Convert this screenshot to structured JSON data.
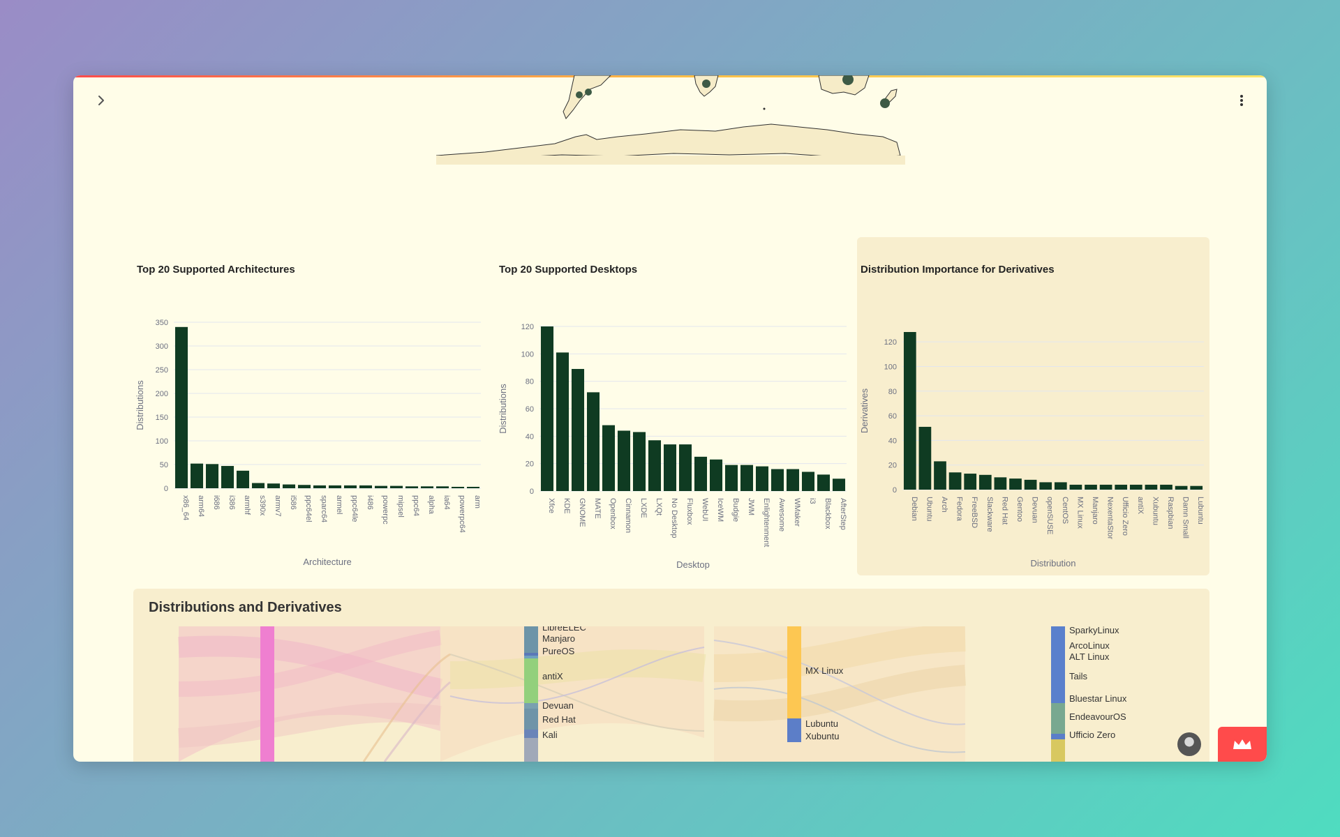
{
  "window": {
    "accent_gradient": [
      "#ff4b4b",
      "#ffbd45",
      "#ffe66b"
    ],
    "background": "#fffde8"
  },
  "header": {
    "expand_icon": "chevron-right-icon",
    "menu_icon": "more-vertical-icon"
  },
  "colors": {
    "bar": "#0f3b22",
    "panel": "#f8eece",
    "grid": "#e3e6ee",
    "axis_text": "#6b6f80"
  },
  "chart_data": [
    {
      "type": "bar",
      "title": "Top 20 Supported Architectures",
      "xlabel": "Architecture",
      "ylabel": "Distributions",
      "categories": [
        "x86_64",
        "arm64",
        "i686",
        "i386",
        "armhf",
        "s390x",
        "armv7",
        "i586",
        "ppc64el",
        "sparc64",
        "armel",
        "ppc64le",
        "i486",
        "powerpc",
        "mipsel",
        "ppc64",
        "alpha",
        "ia64",
        "powerpc64",
        "arm"
      ],
      "values": [
        340,
        52,
        51,
        47,
        37,
        11,
        10,
        8,
        7,
        6,
        6,
        6,
        6,
        5,
        5,
        4,
        4,
        4,
        3,
        3
      ],
      "ylim": [
        0,
        350
      ],
      "yticks": [
        0,
        50,
        100,
        150,
        200,
        250,
        300,
        350
      ],
      "grid": true
    },
    {
      "type": "bar",
      "title": "Top 20 Supported Desktops",
      "xlabel": "Desktop",
      "ylabel": "Distributions",
      "categories": [
        "Xfce",
        "KDE",
        "GNOME",
        "MATE",
        "Openbox",
        "Cinnamon",
        "LXDE",
        "LXQt",
        "No Desktop",
        "Fluxbox",
        "WebUI",
        "IceWM",
        "Budgie",
        "JWM",
        "Enlightenment",
        "Awesome",
        "WMaker",
        "i3",
        "Blackbox",
        "AfterStep"
      ],
      "values": [
        120,
        101,
        89,
        72,
        48,
        44,
        43,
        37,
        34,
        34,
        25,
        23,
        19,
        19,
        18,
        16,
        16,
        14,
        12,
        9
      ],
      "ylim": [
        0,
        120
      ],
      "yticks": [
        0,
        20,
        40,
        60,
        80,
        100,
        120
      ],
      "grid": true
    },
    {
      "type": "bar",
      "title": "Distribution Importance for Derivatives",
      "xlabel": "Distribution",
      "ylabel": "Derivatives",
      "categories": [
        "Debian",
        "Ubuntu",
        "Arch",
        "Fedora",
        "FreeBSD",
        "Slackware",
        "Red Hat",
        "Gentoo",
        "Devuan",
        "openSUSE",
        "CentOS",
        "MX Linux",
        "Manjaro",
        "NexentaStor",
        "Ufficio Zero",
        "antiX",
        "Xubuntu",
        "Raspbian",
        "Damn Small",
        "Lubuntu"
      ],
      "values": [
        128,
        51,
        23,
        14,
        13,
        12,
        10,
        9,
        8,
        6,
        6,
        4,
        4,
        4,
        4,
        4,
        4,
        4,
        3,
        3
      ],
      "ylim": [
        0,
        128
      ],
      "yticks": [
        0,
        20,
        40,
        60,
        80,
        100,
        120
      ],
      "grid": true
    }
  ],
  "sankey": {
    "title": "Distributions and Derivatives",
    "col2_labels": [
      "LibreELEC",
      "Manjaro",
      "PureOS",
      "antiX",
      "Devuan",
      "Red Hat",
      "Kali"
    ],
    "col3_labels": [
      "MX Linux",
      "Lubuntu",
      "Xubuntu"
    ],
    "col4_labels": [
      "SparkyLinux",
      "ArcoLinux",
      "ALT Linux",
      "Tails",
      "Bluestar Linux",
      "EndeavourOS",
      "Ufficio Zero"
    ]
  }
}
